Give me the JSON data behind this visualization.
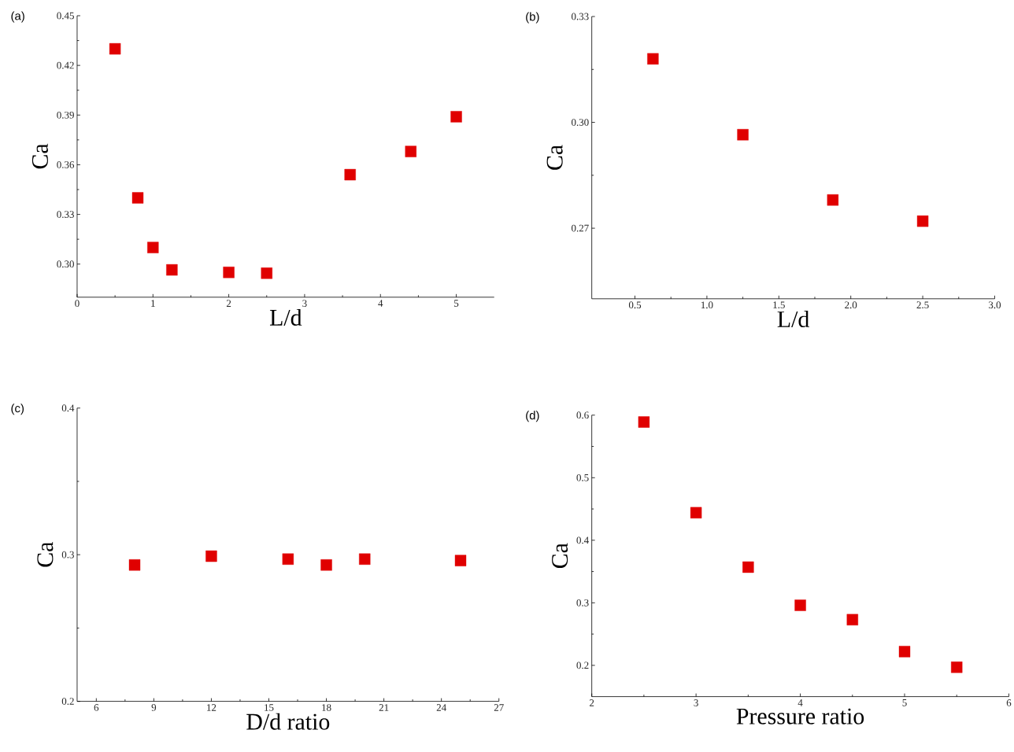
{
  "chart_data": [
    {
      "type": "scatter",
      "title": "(a)",
      "xlabel": "L/d",
      "ylabel": "Ca",
      "marker": "square",
      "grid": false,
      "x": [
        0.5,
        0.8,
        1.0,
        1.25,
        2.0,
        2.5,
        3.6,
        4.4,
        5.0
      ],
      "series": [
        {
          "color": "#e00000",
          "values": [
            0.43,
            0.34,
            0.31,
            0.2965,
            0.295,
            0.2945,
            0.354,
            0.368,
            0.389
          ]
        }
      ],
      "xlim": [
        0,
        5.5
      ],
      "xticks": [
        0,
        1,
        2,
        3,
        4,
        5
      ],
      "ylim": [
        0.28,
        0.45
      ],
      "yticks": [
        {
          "value": 0.3,
          "label": "0.30"
        },
        0.33,
        0.36,
        0.39,
        0.42,
        0.45
      ]
    },
    {
      "type": "scatter",
      "title": "(b)",
      "xlabel": "L/d",
      "ylabel": "Ca",
      "marker": "square",
      "grid": false,
      "x": [
        0.625,
        1.25,
        1.875,
        2.5
      ],
      "series": [
        {
          "color": "#e00000",
          "values": [
            0.318,
            0.2965,
            0.278,
            0.272
          ]
        }
      ],
      "xlim": [
        0.2,
        3.0
      ],
      "xticks": [
        0.5,
        {
          "value": 1,
          "label": "1.0"
        },
        1.5,
        {
          "value": 2,
          "label": "2.0"
        },
        2.5,
        {
          "value": 3,
          "label": "3.0"
        }
      ],
      "ylim": [
        0.25,
        0.33
      ],
      "yticks": [
        0.27,
        {
          "value": 0.3,
          "label": "0.30"
        },
        0.33
      ]
    },
    {
      "type": "scatter",
      "title": "(c)",
      "xlabel": "D/d ratio",
      "ylabel": "Ca",
      "marker": "square",
      "grid": false,
      "x": [
        8,
        12,
        16,
        18,
        20,
        25
      ],
      "series": [
        {
          "color": "#e00000",
          "values": [
            0.293,
            0.299,
            0.297,
            0.293,
            0.297,
            0.296
          ]
        }
      ],
      "xlim": [
        5,
        27
      ],
      "xticks": [
        6,
        9,
        12,
        15,
        18,
        21,
        24,
        27
      ],
      "ylim": [
        0.2,
        0.4
      ],
      "yticks": [
        0.2,
        0.3,
        0.4
      ]
    },
    {
      "type": "scatter",
      "title": "(d)",
      "xlabel": "Pressure ratio",
      "ylabel": "Ca",
      "marker": "square",
      "grid": false,
      "x": [
        2.5,
        3,
        3.5,
        4,
        4.5,
        5,
        5.5
      ],
      "series": [
        {
          "color": "#e00000",
          "values": [
            0.589,
            0.444,
            0.357,
            0.296,
            0.273,
            0.222,
            0.197
          ]
        }
      ],
      "xlim": [
        2,
        6
      ],
      "xticks": [
        2,
        3,
        4,
        5,
        6
      ],
      "ylim": [
        0.15,
        0.6
      ],
      "yticks": [
        0.2,
        0.3,
        0.4,
        0.5,
        0.6
      ]
    }
  ]
}
